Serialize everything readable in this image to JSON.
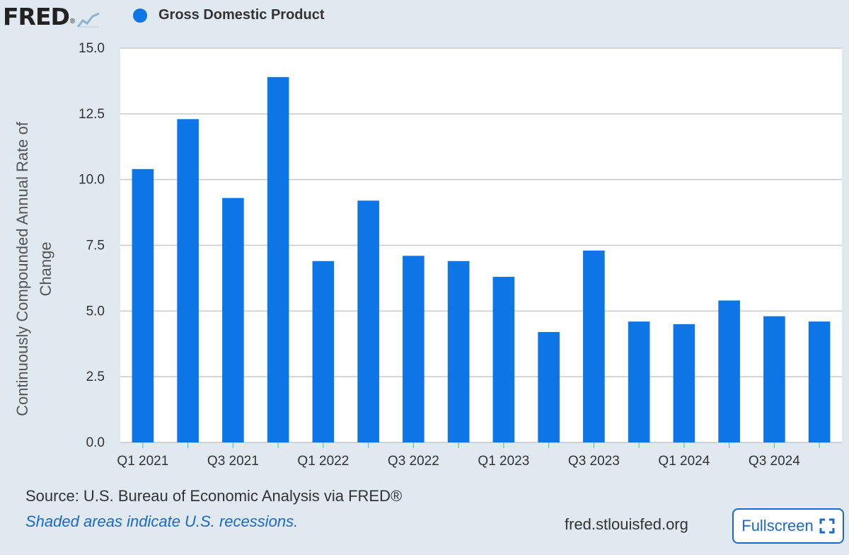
{
  "brand": {
    "name": "FRED",
    "reg": "®"
  },
  "legend": {
    "label": "Gross Domestic Product"
  },
  "chart_data": {
    "type": "bar",
    "title": "Gross Domestic Product",
    "ylabel_lines": [
      "Continuously Compounded Annual Rate of",
      "Change"
    ],
    "xlabel": "",
    "ylim": [
      0,
      15
    ],
    "yticks": [
      "0.0",
      "2.5",
      "5.0",
      "7.5",
      "10.0",
      "12.5",
      "15.0"
    ],
    "categories": [
      "Q1 2021",
      "Q2 2021",
      "Q3 2021",
      "Q4 2021",
      "Q1 2022",
      "Q2 2022",
      "Q3 2022",
      "Q4 2022",
      "Q1 2023",
      "Q2 2023",
      "Q3 2023",
      "Q4 2023",
      "Q1 2024",
      "Q2 2024",
      "Q3 2024",
      "Q4 2024"
    ],
    "xtick_labels": [
      "Q1 2021",
      "",
      "Q3 2021",
      "",
      "Q1 2022",
      "",
      "Q3 2022",
      "",
      "Q1 2023",
      "",
      "Q3 2023",
      "",
      "Q1 2024",
      "",
      "Q3 2024",
      ""
    ],
    "values": [
      10.4,
      12.3,
      9.3,
      13.9,
      6.9,
      9.2,
      7.1,
      6.9,
      6.3,
      4.2,
      7.3,
      4.6,
      4.5,
      5.4,
      4.8,
      4.6
    ],
    "series_color": "#0e75e6",
    "grid": true
  },
  "footer": {
    "source": "Source: U.S. Bureau of Economic Analysis via FRED®",
    "note": "Shaded areas indicate U.S. recessions.",
    "site": "fred.stlouisfed.org",
    "fullscreen_label": "Fullscreen"
  }
}
